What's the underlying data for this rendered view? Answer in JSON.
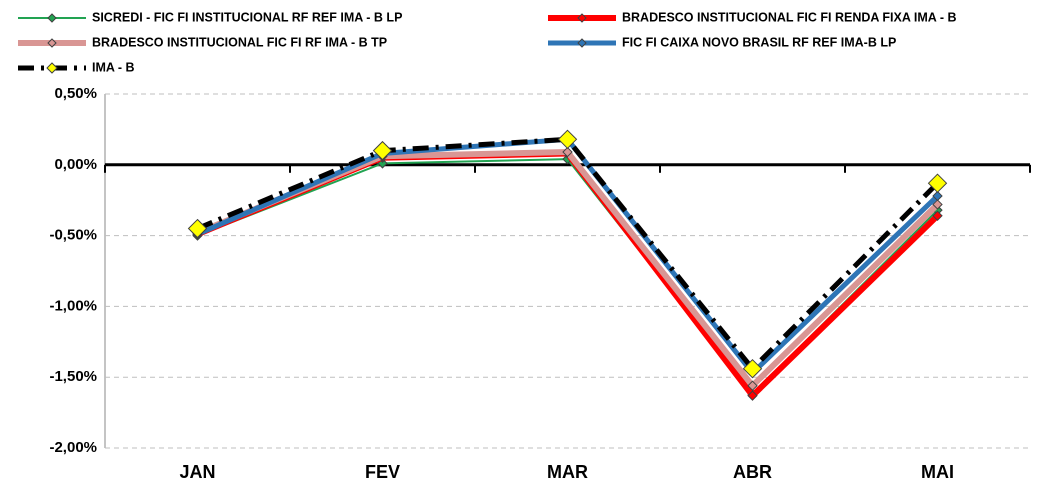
{
  "chart_data": {
    "type": "line",
    "categories": [
      "JAN",
      "FEV",
      "MAR",
      "ABR",
      "MAI"
    ],
    "series": [
      {
        "name": "SICREDI - FIC FI INSTITUCIONAL RF REF IMA - B LP",
        "color": "#22a352",
        "values": [
          -0.5,
          0.01,
          0.04,
          -1.62,
          -0.32
        ]
      },
      {
        "name": "BRADESCO INSTITUCIONAL FIC FI RENDA FIXA IMA - B",
        "color": "#ff0000",
        "values": [
          -0.49,
          0.05,
          0.08,
          -1.63,
          -0.36
        ]
      },
      {
        "name": "BRADESCO INSTITUCIONAL FIC FI RF IMA - B TP",
        "color": "#d99694",
        "values": [
          -0.48,
          0.06,
          0.09,
          -1.56,
          -0.28
        ]
      },
      {
        "name": "FIC FI CAIXA NOVO BRASIL RF REF IMA-B LP",
        "color": "#2e75b6",
        "values": [
          -0.49,
          0.08,
          0.18,
          -1.47,
          -0.22
        ]
      },
      {
        "name": "IMA - B",
        "color": "#000000",
        "values": [
          -0.45,
          0.1,
          0.18,
          -1.44,
          -0.13
        ]
      }
    ],
    "ylim": [
      -2.0,
      0.5
    ],
    "yticks": [
      {
        "value": 0.5,
        "label": "0,50%"
      },
      {
        "value": 0,
        "label": "0,00%"
      },
      {
        "value": -0.5,
        "label": "-0,50%"
      },
      {
        "value": -1.0,
        "label": "-1,00%"
      },
      {
        "value": -1.5,
        "label": "-1,50%"
      },
      {
        "value": -2.0,
        "label": "-2,00%"
      }
    ],
    "grid": true
  }
}
